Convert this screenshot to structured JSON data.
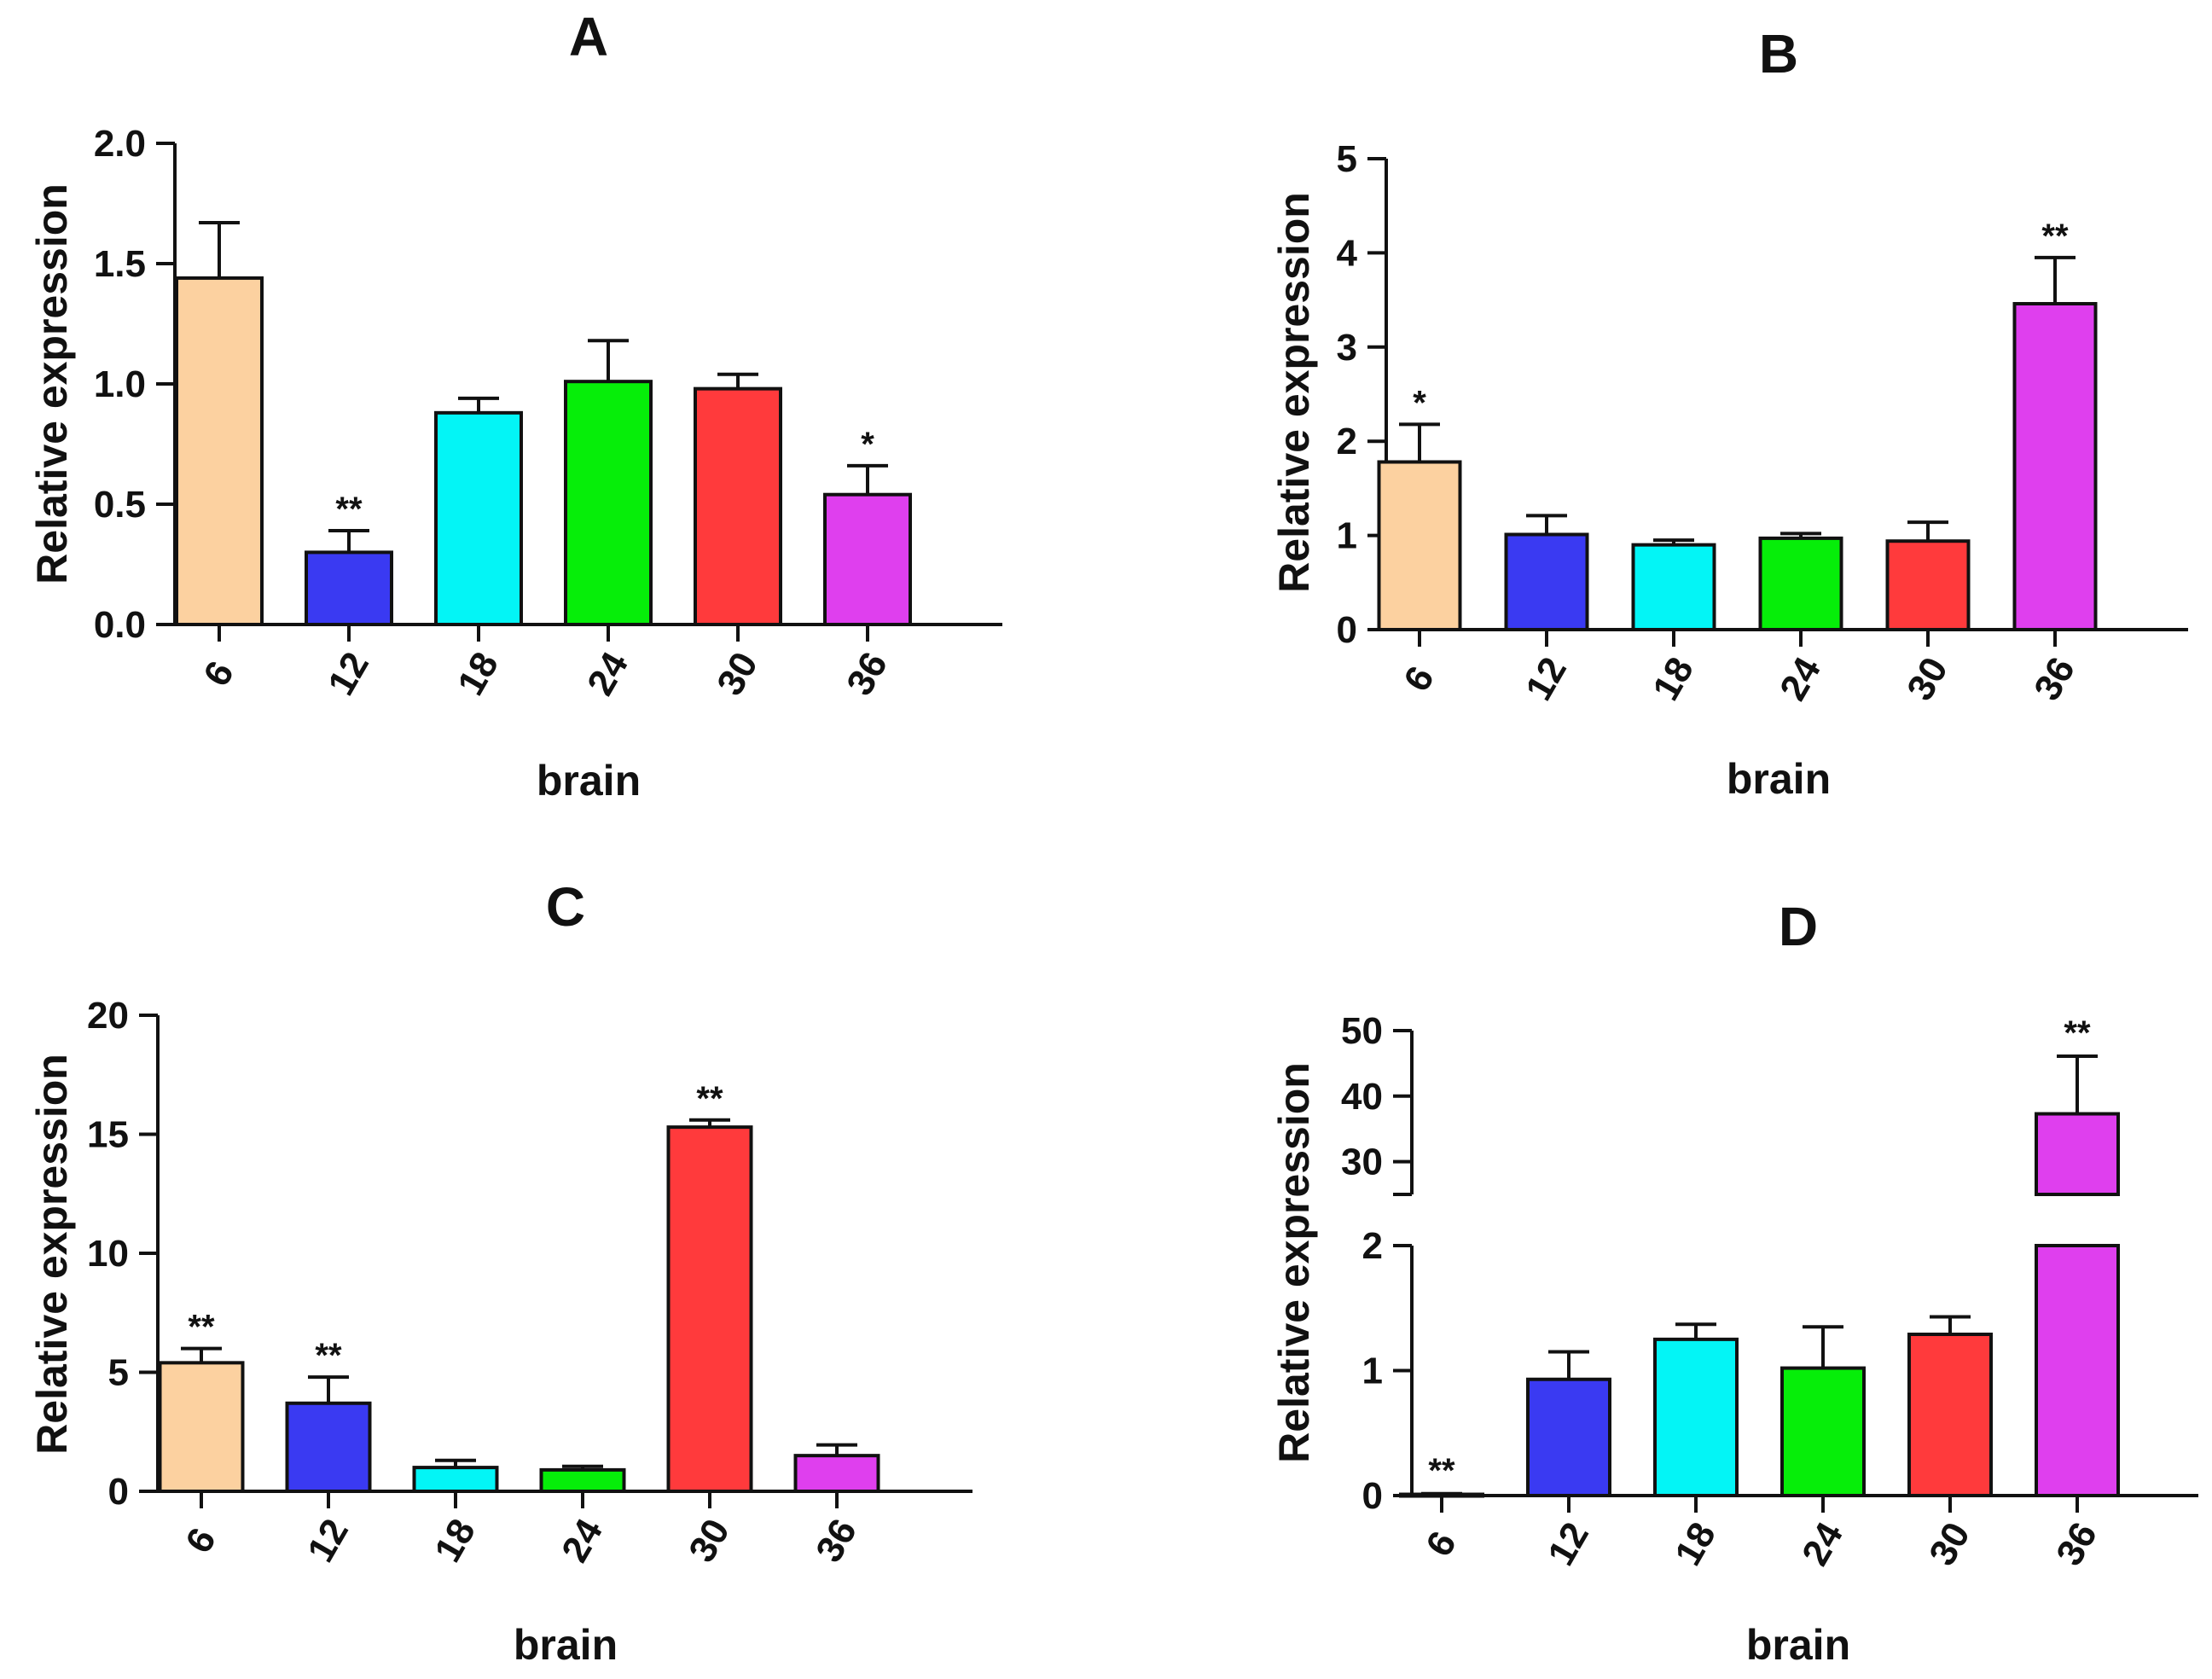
{
  "figure": {
    "panels": [
      "A",
      "B",
      "C",
      "D"
    ]
  },
  "colors": {
    "bar_colors": [
      "#FCD1A0",
      "#3A3AF2",
      "#03F5F6",
      "#06EE09",
      "#FF3A3C",
      "#DF3FEE"
    ],
    "stroke": "#111111"
  },
  "chart_data": [
    {
      "type": "bar",
      "panel": "A",
      "title": "A",
      "xlabel": "brain",
      "ylabel": "Relative expression",
      "categories": [
        "6",
        "12",
        "18",
        "24",
        "30",
        "36"
      ],
      "values": [
        1.44,
        0.3,
        0.88,
        1.01,
        0.98,
        0.54
      ],
      "errors": [
        0.23,
        0.09,
        0.06,
        0.17,
        0.06,
        0.12
      ],
      "significance": [
        "",
        "**",
        "",
        "",
        "",
        "*"
      ],
      "ylim": [
        0,
        2.0
      ],
      "yticks": [
        0,
        0.5,
        1.0,
        1.5,
        2.0
      ],
      "ytick_labels": [
        "0.0",
        "0.5",
        "1.0",
        "1.5",
        "2.0"
      ],
      "grid": false
    },
    {
      "type": "bar",
      "panel": "B",
      "title": "B",
      "xlabel": "brain",
      "ylabel": "Relative expression",
      "categories": [
        "6",
        "12",
        "18",
        "24",
        "30",
        "36"
      ],
      "values": [
        1.78,
        1.01,
        0.9,
        0.97,
        0.94,
        3.46
      ],
      "errors": [
        0.4,
        0.2,
        0.05,
        0.05,
        0.2,
        0.49
      ],
      "significance": [
        "*",
        "",
        "",
        "",
        "",
        "**"
      ],
      "ylim": [
        0,
        5
      ],
      "yticks": [
        0,
        1,
        2,
        3,
        4,
        5
      ],
      "ytick_labels": [
        "0",
        "1",
        "2",
        "3",
        "4",
        "5"
      ],
      "grid": false
    },
    {
      "type": "bar",
      "panel": "C",
      "title": "C",
      "xlabel": "brain",
      "ylabel": "Relative expression",
      "categories": [
        "6",
        "12",
        "18",
        "24",
        "30",
        "36"
      ],
      "values": [
        5.4,
        3.7,
        1.0,
        0.9,
        15.3,
        1.5
      ],
      "errors": [
        0.6,
        1.1,
        0.3,
        0.15,
        0.3,
        0.45
      ],
      "significance": [
        "**",
        "**",
        "",
        "",
        "**",
        ""
      ],
      "ylim": [
        0,
        20
      ],
      "yticks": [
        0,
        5,
        10,
        15,
        20
      ],
      "ytick_labels": [
        "0",
        "5",
        "10",
        "15",
        "20"
      ],
      "grid": false
    },
    {
      "type": "bar",
      "panel": "D",
      "title": "D",
      "xlabel": "brain",
      "ylabel": "Relative expression",
      "categories": [
        "6",
        "12",
        "18",
        "24",
        "30",
        "36"
      ],
      "values": [
        0.01,
        0.93,
        1.25,
        1.02,
        1.29,
        37.3
      ],
      "errors": [
        0.005,
        0.22,
        0.12,
        0.33,
        0.14,
        8.8
      ],
      "significance": [
        "**",
        "",
        "",
        "",
        "",
        "**"
      ],
      "broken_axis": true,
      "lower_ylim": [
        0,
        2
      ],
      "upper_ylim": [
        25,
        50
      ],
      "lower_yticks": [
        0,
        1,
        2
      ],
      "lower_ytick_labels": [
        "0",
        "1",
        "2"
      ],
      "upper_yticks": [
        30,
        40,
        50
      ],
      "upper_ytick_labels": [
        "30",
        "40",
        "50"
      ],
      "grid": false
    }
  ]
}
